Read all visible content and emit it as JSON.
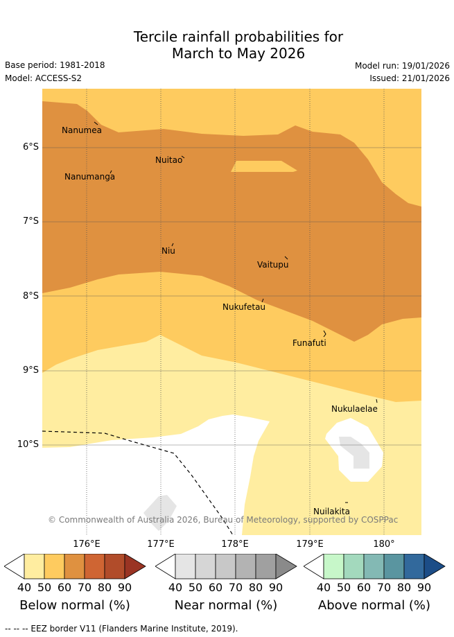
{
  "title": {
    "line1": "Tercile rainfall probabilities for",
    "line2": "March to May 2026"
  },
  "meta": {
    "base_period": "Base period: 1981-2018",
    "model": "Model: ACCESS-S2",
    "model_run": "Model run: 19/01/2026",
    "issued": "Issued: 21/01/2026"
  },
  "map": {
    "latitude_labels": [
      "6°S",
      "7°S",
      "8°S",
      "9°S",
      "10°S"
    ],
    "longitude_labels": [
      "176°E",
      "177°E",
      "178°E",
      "179°E",
      "180°"
    ],
    "places": [
      "Nanumea",
      "Nuitao",
      "Nanumanga",
      "Niu",
      "Vaitupu",
      "Nukufetau",
      "Funafuti",
      "Nukulaelae",
      "Nuilakita"
    ],
    "copyright": "© Commonwealth of Australia 2026, Bureau of Meteorology, supported by COSPPac",
    "colors": {
      "below_40": "#ffeda0",
      "below_50": "#fecb5f",
      "below_60": "#df9140",
      "near_40": "#e5e5e5",
      "grid": "#555555"
    }
  },
  "colorbars": [
    {
      "title": "Below normal (%)",
      "ticks": [
        "40",
        "50",
        "60",
        "70",
        "80",
        "90"
      ],
      "colors": [
        "#ffeda0",
        "#fecb5f",
        "#df9140",
        "#cf6533",
        "#b14c2a",
        "#9a3423"
      ]
    },
    {
      "title": "Near normal (%)",
      "ticks": [
        "40",
        "50",
        "60",
        "70",
        "80",
        "90"
      ],
      "colors": [
        "#e5e5e5",
        "#d6d6d6",
        "#c8c8c8",
        "#b3b3b3",
        "#a0a0a0",
        "#8a8a8a"
      ]
    },
    {
      "title": "Above normal (%)",
      "ticks": [
        "40",
        "50",
        "60",
        "70",
        "80",
        "90"
      ],
      "colors": [
        "#c7f7c9",
        "#a3d9bd",
        "#83b9b4",
        "#5a95a0",
        "#32699c",
        "#1c4d87"
      ]
    }
  ],
  "legend": {
    "eez": "--  --  -- EEZ border V11 (Flanders Marine Institute, 2019)."
  }
}
